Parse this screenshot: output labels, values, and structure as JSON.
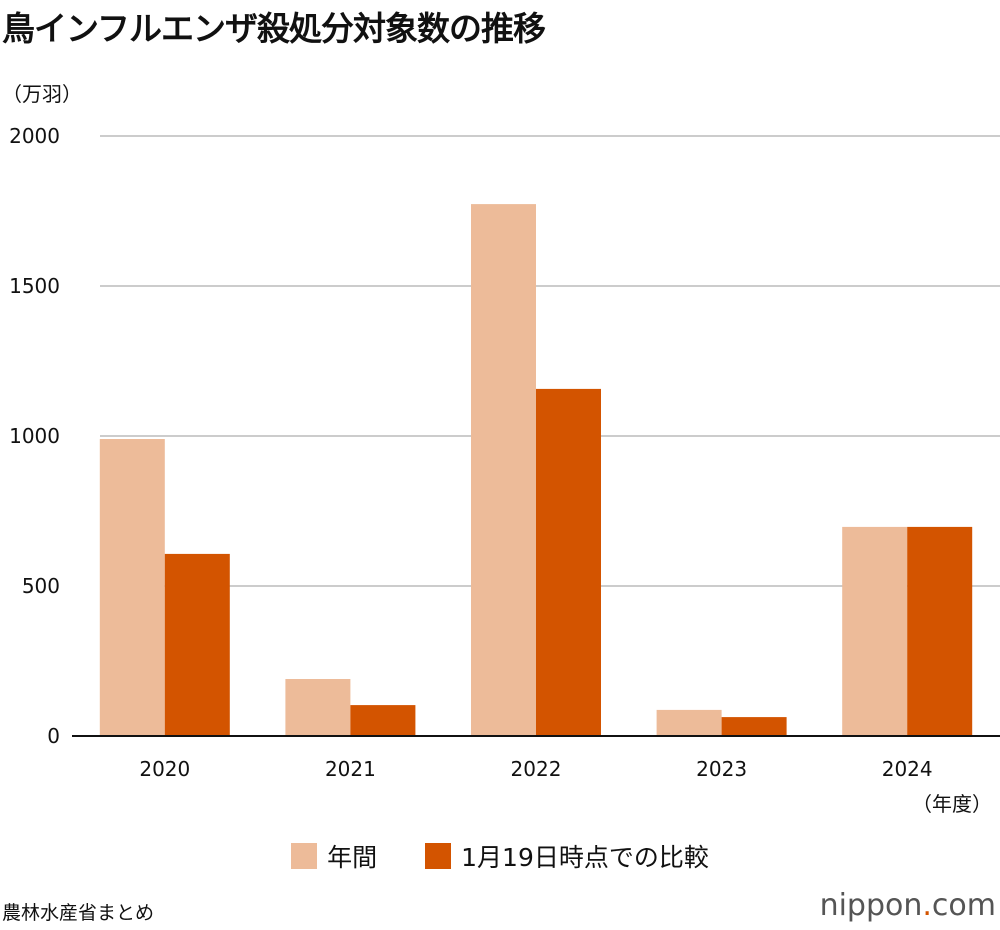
{
  "title": "鳥インフルエンザ殺処分対象数の推移",
  "source": "農林水産省まとめ",
  "logo": {
    "name": "nippon",
    "dot": ".",
    "tld": "com"
  },
  "chart_data": {
    "type": "bar",
    "title": "鳥インフルエンザ殺処分対象数の推移",
    "ylabel": "（万羽）",
    "xlabel": "（年度）",
    "categories": [
      "2020",
      "2021",
      "2022",
      "2023",
      "2024"
    ],
    "series": [
      {
        "name": "年間",
        "values": [
          990,
          190,
          1773,
          87,
          697
        ],
        "color": "#edbb99"
      },
      {
        "name": "1月19日時点での比較",
        "values": [
          607,
          103,
          1157,
          63,
          697
        ],
        "color": "#d35400"
      }
    ],
    "ylim": [
      0,
      2000
    ],
    "yticks": [
      "0",
      "500",
      "1000",
      "1500",
      "2000"
    ],
    "grid": true,
    "legend": "bottom"
  }
}
